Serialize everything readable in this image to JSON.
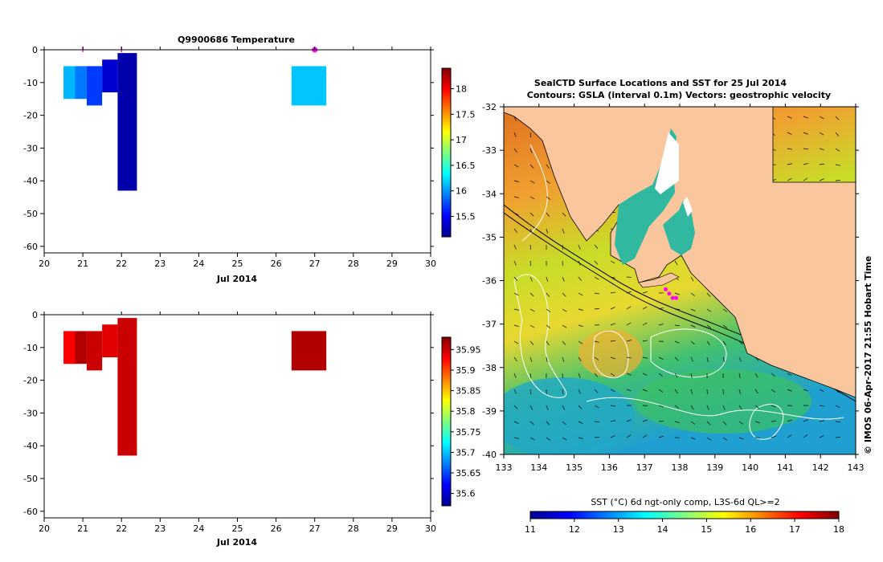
{
  "chart_data": [
    {
      "id": "temperature-profile",
      "type": "heatmap",
      "title": "Q9900686  Temperature",
      "xlabel": "Jul 2014",
      "xlim": [
        20,
        30
      ],
      "ylim": [
        -62,
        0
      ],
      "xticks": [
        20,
        21,
        22,
        23,
        24,
        25,
        26,
        27,
        28,
        29,
        30
      ],
      "yticks": [
        0,
        -10,
        -20,
        -30,
        -40,
        -50,
        -60
      ],
      "profile_markers": [
        21.0,
        22.0,
        27.0
      ],
      "cells": [
        {
          "x0": 20.5,
          "x1": 20.8,
          "top": -5,
          "bottom": -15,
          "value": 16.1
        },
        {
          "x0": 20.8,
          "x1": 21.1,
          "top": -5,
          "bottom": -15,
          "value": 15.9
        },
        {
          "x0": 21.1,
          "x1": 21.5,
          "top": -5,
          "bottom": -17,
          "value": 15.7
        },
        {
          "x0": 21.5,
          "x1": 21.9,
          "top": -3,
          "bottom": -13,
          "value": 15.35
        },
        {
          "x0": 21.9,
          "x1": 22.4,
          "top": -1,
          "bottom": -43,
          "value": 15.2
        },
        {
          "x0": 26.4,
          "x1": 27.3,
          "top": -5,
          "bottom": -17,
          "value": 16.15
        }
      ],
      "colorbar": {
        "min": 15.1,
        "max": 18.4,
        "ticks": [
          "15.5",
          "16",
          "16.5",
          "17",
          "17.5",
          "18"
        ]
      }
    },
    {
      "id": "salinity-profile",
      "type": "heatmap",
      "xlabel": "Jul 2014",
      "xlim": [
        20,
        30
      ],
      "ylim": [
        -62,
        0
      ],
      "xticks": [
        20,
        21,
        22,
        23,
        24,
        25,
        26,
        27,
        28,
        29,
        30
      ],
      "yticks": [
        0,
        -10,
        -20,
        -30,
        -40,
        -50,
        -60
      ],
      "cells": [
        {
          "x0": 20.5,
          "x1": 20.8,
          "top": -5,
          "bottom": -15,
          "value": 35.93
        },
        {
          "x0": 20.8,
          "x1": 21.1,
          "top": -5,
          "bottom": -15,
          "value": 35.96
        },
        {
          "x0": 21.1,
          "x1": 21.5,
          "top": -5,
          "bottom": -17,
          "value": 35.95
        },
        {
          "x0": 21.5,
          "x1": 21.9,
          "top": -3,
          "bottom": -13,
          "value": 35.94
        },
        {
          "x0": 21.9,
          "x1": 22.4,
          "top": -1,
          "bottom": -43,
          "value": 35.95
        },
        {
          "x0": 26.4,
          "x1": 27.3,
          "top": -5,
          "bottom": -17,
          "value": 35.96
        }
      ],
      "colorbar": {
        "min": 35.57,
        "max": 35.98,
        "ticks": [
          "35.6",
          "35.65",
          "35.7",
          "35.75",
          "35.8",
          "35.85",
          "35.9",
          "35.95"
        ]
      }
    },
    {
      "id": "sst-map",
      "type": "heatmap",
      "title": "SealCTD Surface Locations and SST for 25 Jul 2014",
      "subtitle": "Contours: GSLA (interval 0.1m) Vectors: geostrophic velocity",
      "xlim": [
        133,
        143
      ],
      "ylim": [
        -40,
        -32
      ],
      "xticks": [
        133,
        134,
        135,
        136,
        137,
        138,
        139,
        140,
        141,
        142,
        143
      ],
      "yticks": [
        -32,
        -33,
        -34,
        -35,
        -36,
        -37,
        -38,
        -39,
        -40
      ],
      "seal_locations": [
        [
          137.6,
          -36.2
        ],
        [
          137.7,
          -36.3
        ],
        [
          137.8,
          -36.4
        ],
        [
          137.9,
          -36.4
        ]
      ],
      "side_label": "© IMOS 06-Apr-2017 21:55 Hobart Time",
      "colorbar": {
        "label": "SST (°C) 6d ngt-only comp, L3S-6d QL>=2",
        "min": 11,
        "max": 18,
        "ticks": [
          "11",
          "12",
          "13",
          "14",
          "15",
          "16",
          "17",
          "18"
        ]
      }
    }
  ],
  "colors": {
    "land": "#f9c69e",
    "marker": "#ff00ff"
  }
}
